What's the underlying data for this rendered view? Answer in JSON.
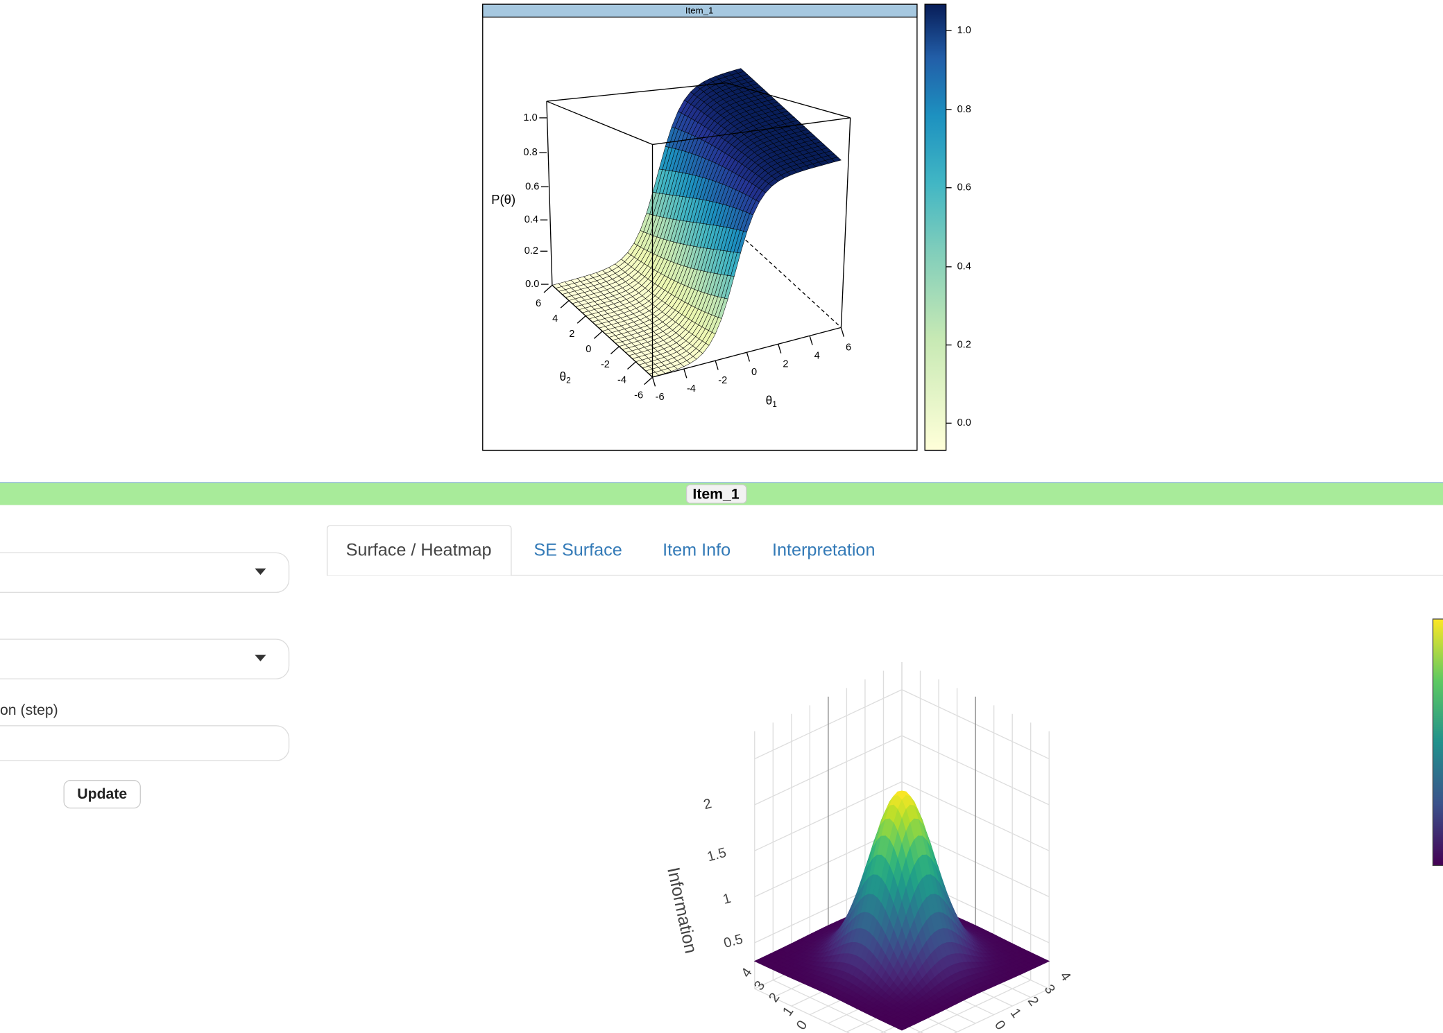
{
  "top_plot": {
    "panel_title": "Item_1",
    "z_label": "P(θ)",
    "z_ticks": [
      "0.0",
      "0.2",
      "0.4",
      "0.6",
      "0.8",
      "1.0"
    ],
    "x_label": {
      "base": "θ",
      "sub": "1"
    },
    "y_label": {
      "base": "θ",
      "sub": "2"
    },
    "x_ticks": [
      "-6",
      "-4",
      "-2",
      "0",
      "2",
      "4",
      "6"
    ],
    "y_ticks": [
      "-6",
      "-4",
      "-2",
      "0",
      "2",
      "4",
      "6"
    ],
    "colorbar_ticks": [
      "0.0",
      "0.2",
      "0.4",
      "0.6",
      "0.8",
      "1.0"
    ]
  },
  "banner": {
    "label": "Item_1"
  },
  "sidebar": {
    "field_label": "on (step)",
    "button": "Update"
  },
  "tabs": [
    "Surface / Heatmap",
    "SE Surface",
    "Item Info",
    "Interpretation"
  ],
  "bottom_plot": {
    "z_label": "Information",
    "z_ticks": [
      "0.5",
      "1",
      "1.5",
      "2"
    ],
    "left_ticks": [
      "4",
      "3",
      "2",
      "1",
      "0"
    ],
    "right_ticks": [
      "0",
      "1",
      "2",
      "3",
      "4"
    ]
  }
}
